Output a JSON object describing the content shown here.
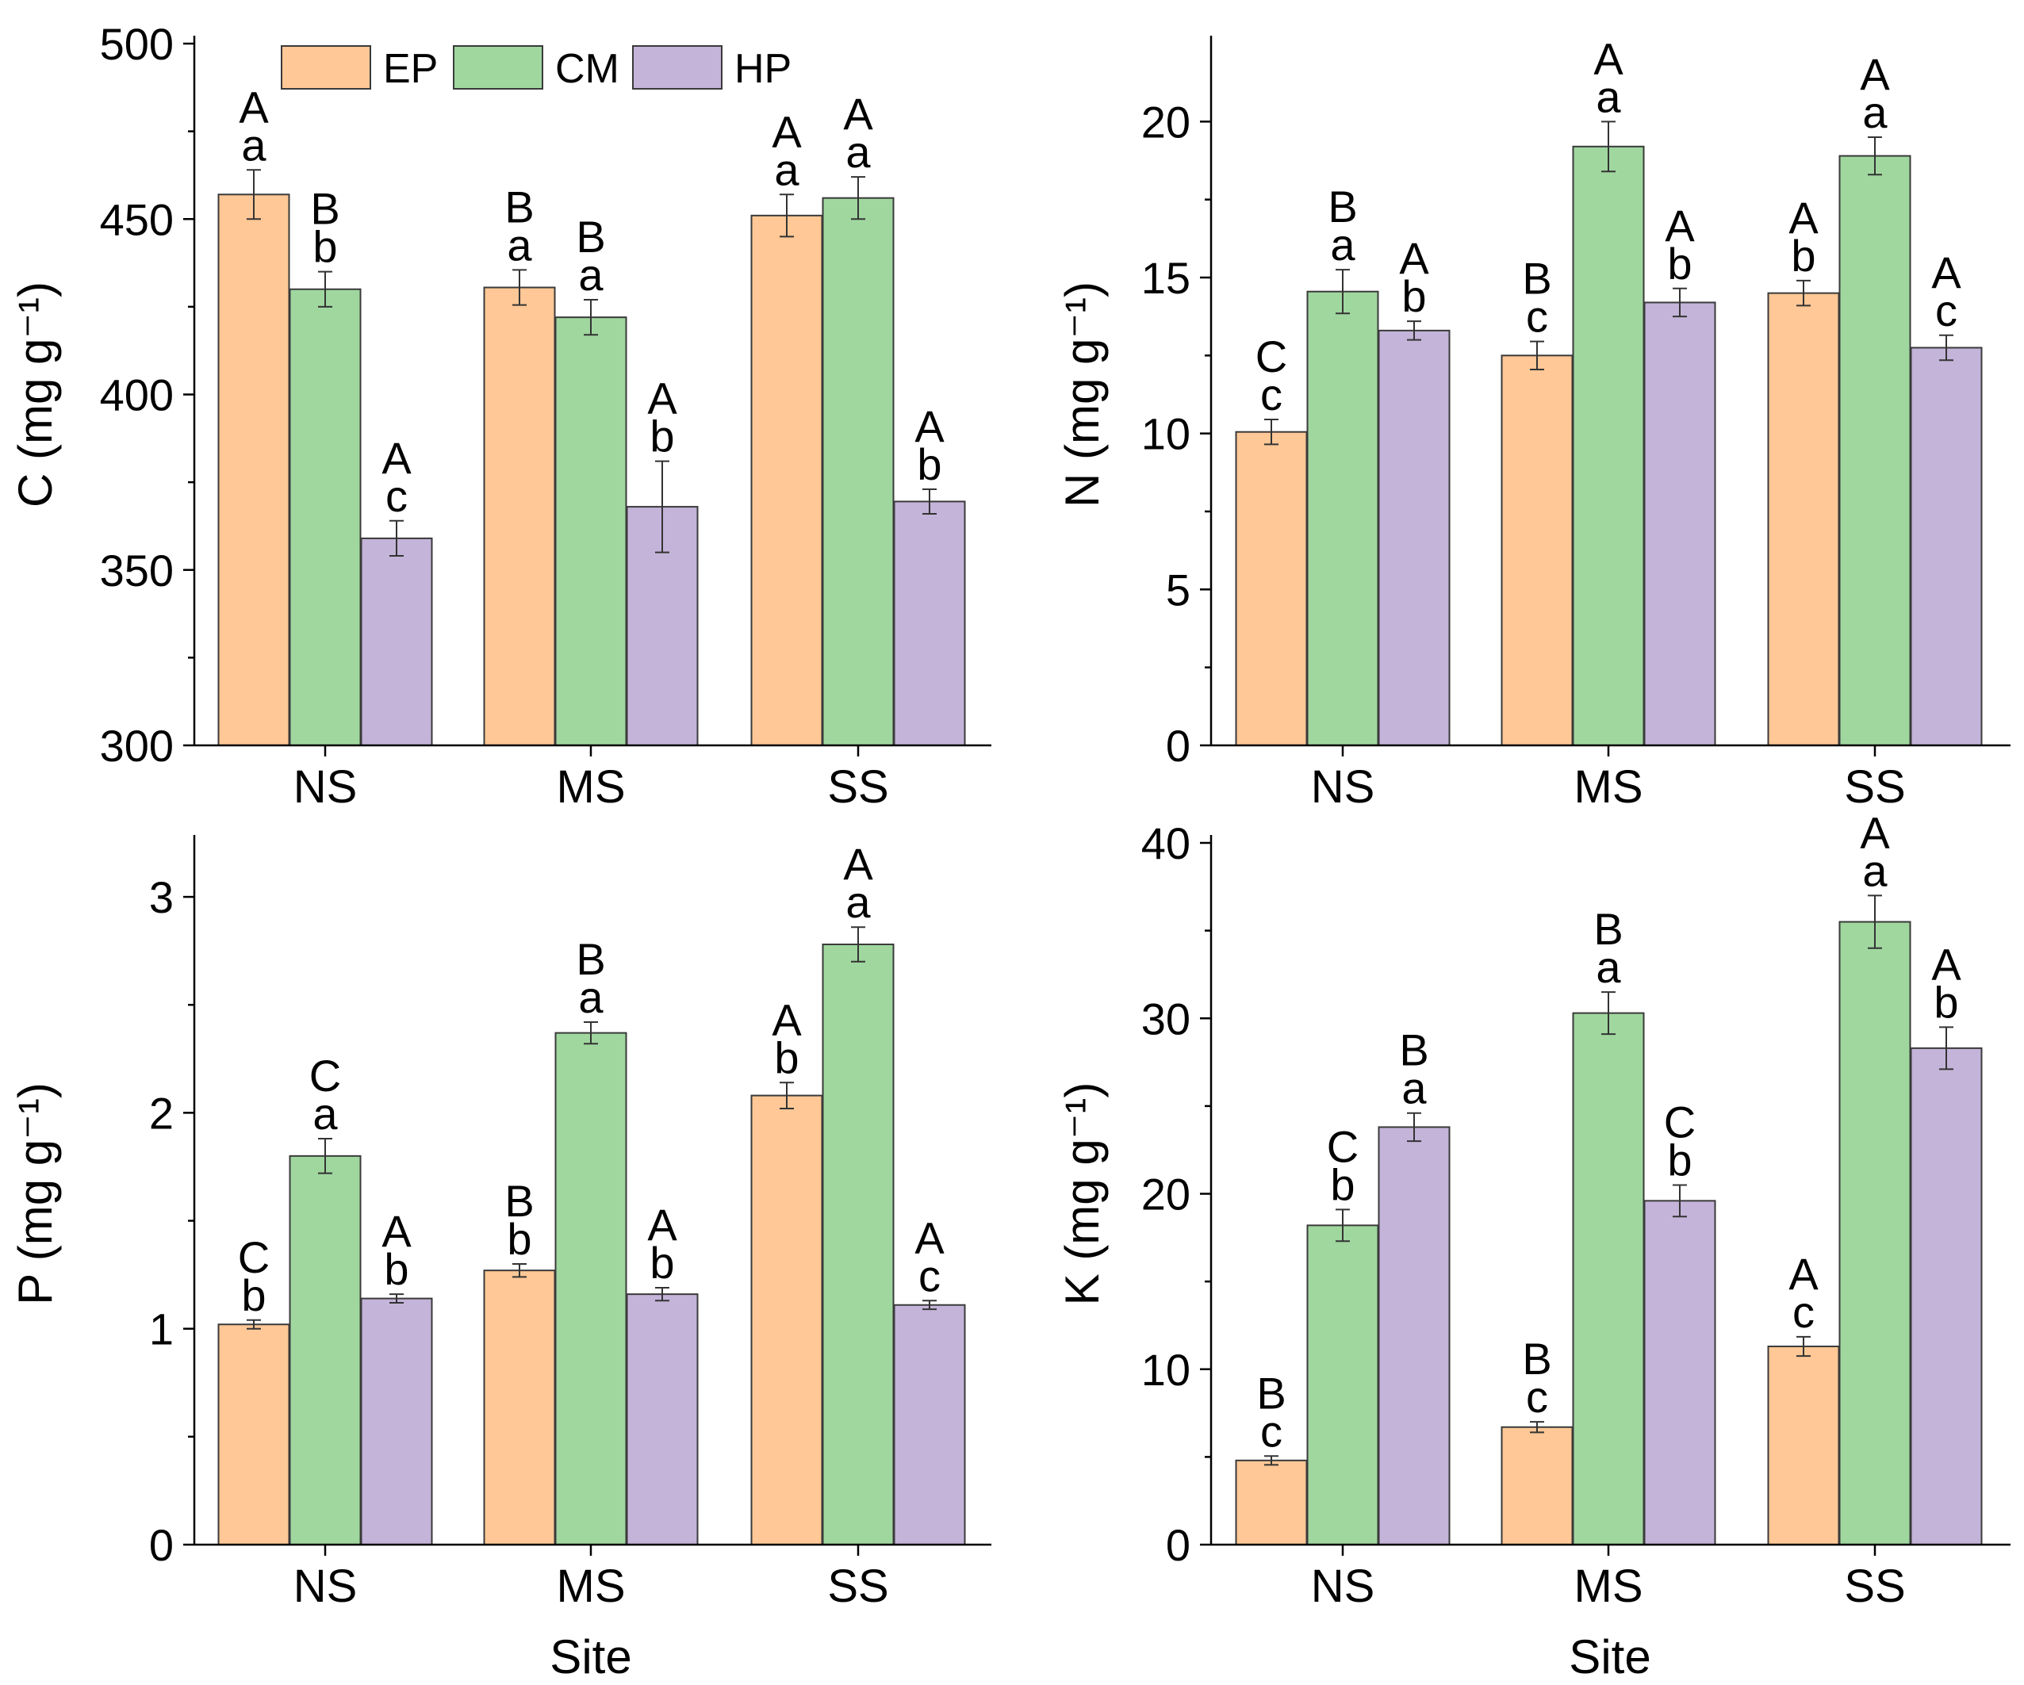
{
  "colors": {
    "EP": "#ffc896",
    "CM": "#a0d79f",
    "HP": "#c4b4d9"
  },
  "legend": [
    "EP",
    "CM",
    "HP"
  ],
  "shared_xlabel": "Site",
  "chart_data": [
    {
      "type": "bar",
      "categories": [
        "NS",
        "MS",
        "SS"
      ],
      "ylabel": "C (mg g⁻¹)",
      "ylim": [
        300,
        500
      ],
      "yticks": [
        300,
        350,
        400,
        450,
        500
      ],
      "series": [
        {
          "name": "EP",
          "values": [
            457,
            430.5,
            451
          ],
          "err": [
            7,
            5,
            6
          ],
          "letters": [
            [
              "A",
              "a"
            ],
            [
              "B",
              "a"
            ],
            [
              "A",
              "a"
            ]
          ]
        },
        {
          "name": "CM",
          "values": [
            430,
            422,
            456
          ],
          "err": [
            5,
            5,
            6
          ],
          "letters": [
            [
              "B",
              "b"
            ],
            [
              "B",
              "a"
            ],
            [
              "A",
              "a"
            ]
          ]
        },
        {
          "name": "HP",
          "values": [
            359,
            368,
            369.5
          ],
          "err": [
            5,
            13,
            3.5
          ],
          "letters": [
            [
              "A",
              "c"
            ],
            [
              "A",
              "b"
            ],
            [
              "A",
              "b"
            ]
          ]
        }
      ]
    },
    {
      "type": "bar",
      "categories": [
        "NS",
        "MS",
        "SS"
      ],
      "ylabel": "N (mg g⁻¹)",
      "ylim": [
        0,
        22.5
      ],
      "yticks": [
        0,
        5,
        10,
        15,
        20
      ],
      "series": [
        {
          "name": "EP",
          "values": [
            10.05,
            12.5,
            14.5
          ],
          "err": [
            0.4,
            0.45,
            0.4
          ],
          "letters": [
            [
              "C",
              "c"
            ],
            [
              "B",
              "c"
            ],
            [
              "A",
              "b"
            ]
          ]
        },
        {
          "name": "CM",
          "values": [
            14.55,
            19.2,
            18.9
          ],
          "err": [
            0.7,
            0.8,
            0.6
          ],
          "letters": [
            [
              "B",
              "a"
            ],
            [
              "A",
              "a"
            ],
            [
              "A",
              "a"
            ]
          ]
        },
        {
          "name": "HP",
          "values": [
            13.3,
            14.2,
            12.75
          ],
          "err": [
            0.3,
            0.45,
            0.4
          ],
          "letters": [
            [
              "A",
              "b"
            ],
            [
              "A",
              "b"
            ],
            [
              "A",
              "c"
            ]
          ]
        }
      ]
    },
    {
      "type": "bar",
      "categories": [
        "NS",
        "MS",
        "SS"
      ],
      "ylabel": "P (mg g⁻¹)",
      "ylim": [
        0,
        3.25
      ],
      "yticks": [
        0,
        1,
        2,
        3
      ],
      "series": [
        {
          "name": "EP",
          "values": [
            1.02,
            1.27,
            2.08
          ],
          "err": [
            0.02,
            0.03,
            0.06
          ],
          "letters": [
            [
              "C",
              "b"
            ],
            [
              "B",
              "b"
            ],
            [
              "A",
              "b"
            ]
          ]
        },
        {
          "name": "CM",
          "values": [
            1.8,
            2.37,
            2.78
          ],
          "err": [
            0.08,
            0.05,
            0.08
          ],
          "letters": [
            [
              "C",
              "a"
            ],
            [
              "B",
              "a"
            ],
            [
              "A",
              "a"
            ]
          ]
        },
        {
          "name": "HP",
          "values": [
            1.14,
            1.16,
            1.11
          ],
          "err": [
            0.02,
            0.03,
            0.02
          ],
          "letters": [
            [
              "A",
              "b"
            ],
            [
              "A",
              "b"
            ],
            [
              "A",
              "c"
            ]
          ]
        }
      ]
    },
    {
      "type": "bar",
      "categories": [
        "NS",
        "MS",
        "SS"
      ],
      "ylabel": "K (mg g⁻¹)",
      "xlabel": "Site",
      "ylim": [
        0,
        40
      ],
      "yticks": [
        0,
        10,
        20,
        30,
        40
      ],
      "series": [
        {
          "name": "EP",
          "values": [
            4.8,
            6.7,
            11.3
          ],
          "err": [
            0.25,
            0.3,
            0.55
          ],
          "letters": [
            [
              "B",
              "c"
            ],
            [
              "B",
              "c"
            ],
            [
              "A",
              "c"
            ]
          ]
        },
        {
          "name": "CM",
          "values": [
            18.2,
            30.3,
            35.5
          ],
          "err": [
            0.9,
            1.2,
            1.5
          ],
          "letters": [
            [
              "C",
              "b"
            ],
            [
              "B",
              "a"
            ],
            [
              "A",
              "a"
            ]
          ]
        },
        {
          "name": "HP",
          "values": [
            23.8,
            19.6,
            28.3
          ],
          "err": [
            0.8,
            0.9,
            1.2
          ],
          "letters": [
            [
              "B",
              "a"
            ],
            [
              "C",
              "b"
            ],
            [
              "A",
              "b"
            ]
          ]
        }
      ]
    }
  ]
}
